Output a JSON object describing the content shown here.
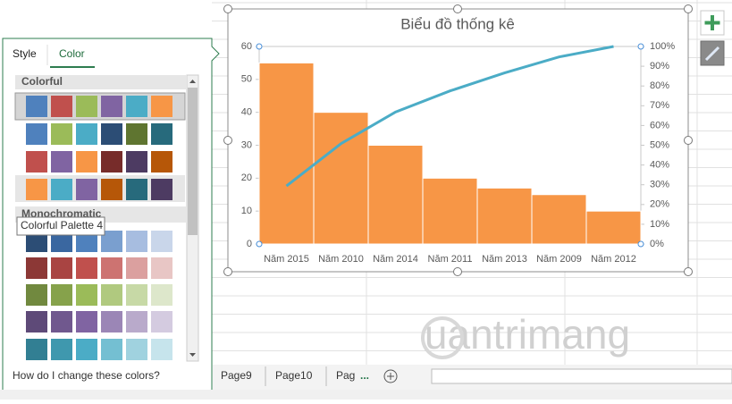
{
  "chart_data": {
    "type": "pareto",
    "title": "Biểu đồ thống kê",
    "categories": [
      "Năm 2015",
      "Năm 2010",
      "Năm 2014",
      "Năm 2011",
      "Năm 2013",
      "Năm 2009",
      "Năm 2012"
    ],
    "values": [
      55,
      40,
      30,
      20,
      17,
      15,
      10
    ],
    "color": "#f79646",
    "line": {
      "values": [
        29.4,
        50.8,
        66.8,
        77.5,
        86.6,
        94.7,
        100
      ],
      "color": "#4bacc6",
      "axis": "y2"
    },
    "ylim": [
      0,
      60
    ],
    "yticks": [
      0,
      10,
      20,
      30,
      40,
      50,
      60
    ],
    "y2lim": [
      0,
      100
    ],
    "y2ticks": [
      {
        "value": 0,
        "label": "0%"
      },
      {
        "value": 10,
        "label": "10%"
      },
      {
        "value": 20,
        "label": "20%"
      },
      {
        "value": 30,
        "label": "30%"
      },
      {
        "value": 40,
        "label": "40%"
      },
      {
        "value": 50,
        "label": "50%"
      },
      {
        "value": 60,
        "label": "60%"
      },
      {
        "value": 70,
        "label": "70%"
      },
      {
        "value": 80,
        "label": "80%"
      },
      {
        "value": 90,
        "label": "90%"
      },
      {
        "value": 100,
        "label": "100%"
      }
    ],
    "grid": false
  },
  "panel": {
    "tabs": [
      "Style",
      "Color"
    ],
    "sections": [
      "Colorful",
      "Monochromatic"
    ],
    "tooltip": "Colorful Palette 4",
    "help_link": "How do I change these colors?"
  },
  "sheet_tabs": [
    "Page9",
    "Page10",
    "Pag"
  ],
  "more_tabs": "...",
  "watermark": "uantrimang"
}
